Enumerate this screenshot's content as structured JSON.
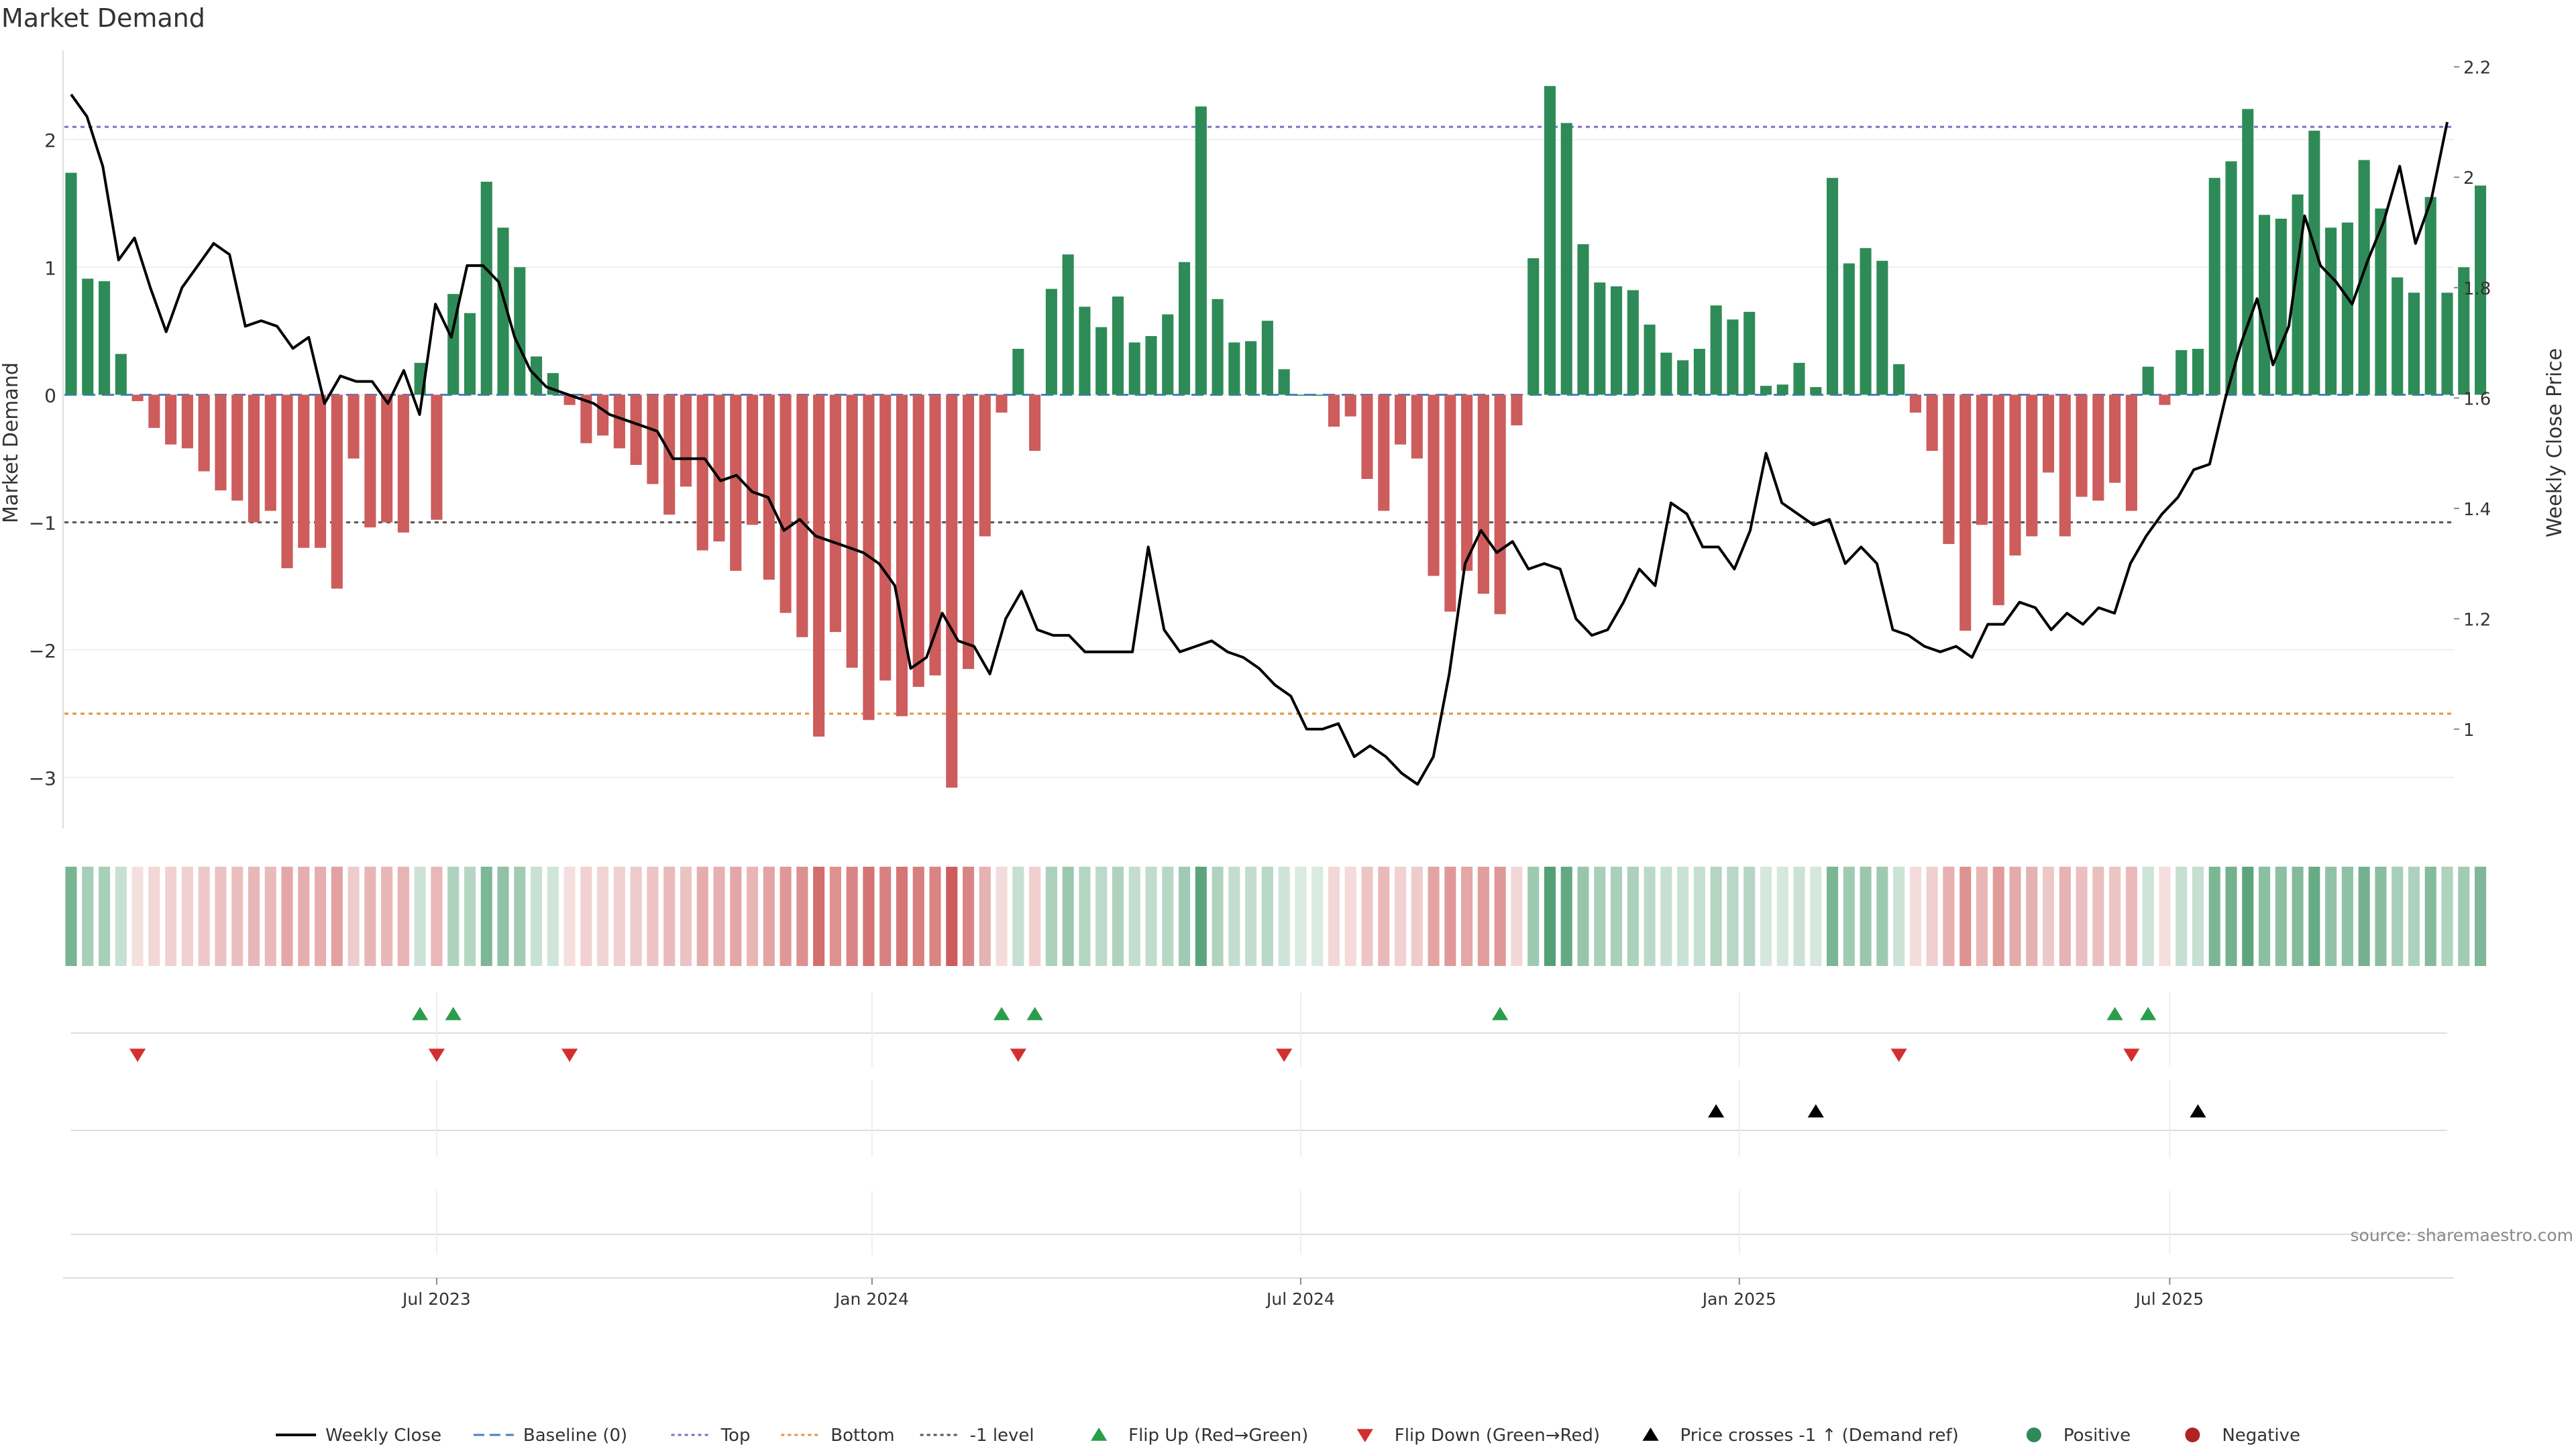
{
  "chart_data": {
    "type": "bar",
    "title": "Market Demand",
    "ylabel_left": "Market Demand",
    "ylabel_right": "Weekly Close Price",
    "ylim_left": [
      -3.4,
      2.7
    ],
    "ylim_right": [
      0.82,
      2.23
    ],
    "yticks_left": [
      -3,
      -2,
      -1,
      0,
      1,
      2
    ],
    "yticks_left_labels": [
      "−3",
      "−2",
      "−1",
      "0",
      "1",
      "2"
    ],
    "yticks_right": [
      1,
      1.2,
      1.4,
      1.6,
      1.8,
      2,
      2.2
    ],
    "yticks_right_labels": [
      "1",
      "1.2",
      "1.4",
      "1.6",
      "1.8",
      "2",
      "2.2"
    ],
    "x_start_index": 0,
    "x_end_index": 143,
    "x_ticks": [
      {
        "label": "Jul 2023",
        "index": 22
      },
      {
        "label": "Jan 2024",
        "index": 48.2
      },
      {
        "label": "Jul 2024",
        "index": 74
      },
      {
        "label": "Jan 2025",
        "index": 100.4
      },
      {
        "label": "Jul 2025",
        "index": 126.3
      }
    ],
    "reference_lines": [
      {
        "name": "Top",
        "value": 2.1,
        "color": "#7a6fc4"
      },
      {
        "name": "Bottom",
        "value": -2.5,
        "color": "#e69138"
      },
      {
        "name": "-1 level",
        "value": -1,
        "color": "#555555"
      },
      {
        "name": "Baseline (0)",
        "value": 0,
        "color": "#4a7fc1"
      }
    ],
    "series": [
      {
        "name": "Market Demand",
        "values": [
          1.74,
          0.91,
          0.89,
          0.32,
          -0.05,
          -0.26,
          -0.39,
          -0.42,
          -0.6,
          -0.75,
          -0.83,
          -1.0,
          -0.91,
          -1.36,
          -1.2,
          -1.2,
          -1.52,
          -0.5,
          -1.04,
          -1.0,
          -1.08,
          0.25,
          -0.98,
          0.79,
          0.64,
          1.67,
          1.31,
          1.0,
          0.3,
          0.17,
          -0.08,
          -0.38,
          -0.32,
          -0.42,
          -0.55,
          -0.7,
          -0.94,
          -0.72,
          -1.22,
          -1.15,
          -1.38,
          -1.02,
          -1.45,
          -1.71,
          -1.9,
          -2.68,
          -1.86,
          -2.14,
          -2.55,
          -2.24,
          -2.52,
          -2.29,
          -2.2,
          -3.08,
          -2.15,
          -1.11,
          -0.14,
          0.36,
          -0.44,
          0.83,
          1.1,
          0.69,
          0.53,
          0.77,
          0.41,
          0.46,
          0.63,
          1.04,
          2.26,
          0.75,
          0.41,
          0.42,
          0.58,
          0.2,
          0.0,
          0.0,
          -0.25,
          -0.17,
          -0.66,
          -0.91,
          -0.39,
          -0.5,
          -1.42,
          -1.7,
          -1.38,
          -1.56,
          -1.72,
          -0.24,
          1.07,
          2.42,
          2.13,
          1.18,
          0.88,
          0.85,
          0.82,
          0.55,
          0.33,
          0.27,
          0.36,
          0.7,
          0.59,
          0.65,
          0.07,
          0.08,
          0.25,
          0.06,
          1.7,
          1.03,
          1.15,
          1.05,
          0.24,
          -0.14,
          -0.44,
          -1.17,
          -1.85,
          -1.02,
          -1.65,
          -1.26,
          -1.11,
          -0.61,
          -1.11,
          -0.8,
          -0.83,
          -0.69,
          -0.91,
          0.22,
          -0.08,
          0.35,
          0.36,
          1.7,
          1.83,
          2.24,
          1.41,
          1.38,
          1.57,
          2.07,
          1.31,
          1.35,
          1.84,
          1.46,
          0.92,
          0.8,
          1.55,
          0.8,
          1.0,
          1.64
        ]
      },
      {
        "name": "Weekly Close",
        "color": "#000000",
        "values": [
          2.15,
          2.11,
          2.02,
          1.85,
          1.89,
          1.8,
          1.72,
          1.8,
          1.84,
          1.88,
          1.86,
          1.73,
          1.74,
          1.73,
          1.69,
          1.71,
          1.59,
          1.64,
          1.63,
          1.63,
          1.59,
          1.65,
          1.57,
          1.77,
          1.71,
          1.84,
          1.84,
          1.81,
          1.71,
          1.65,
          1.62,
          1.61,
          1.6,
          1.59,
          1.57,
          1.56,
          1.55,
          1.54,
          1.49,
          1.49,
          1.49,
          1.45,
          1.46,
          1.43,
          1.42,
          1.36,
          1.38,
          1.35,
          1.34,
          1.33,
          1.32,
          1.3,
          1.26,
          1.11,
          1.13,
          1.21,
          1.16,
          1.15,
          1.1,
          1.2,
          1.25,
          1.18,
          1.17,
          1.17,
          1.14,
          1.14,
          1.14,
          1.14,
          1.33,
          1.18,
          1.14,
          1.15,
          1.16,
          1.14,
          1.13,
          1.11,
          1.08,
          1.06,
          1.0,
          1.0,
          1.01,
          0.95,
          0.97,
          0.95,
          0.92,
          0.9,
          0.95,
          1.1,
          1.3,
          1.36,
          1.32,
          1.34,
          1.29,
          1.3,
          1.29,
          1.2,
          1.17,
          1.18,
          1.23,
          1.29,
          1.26,
          1.41,
          1.39,
          1.33,
          1.33,
          1.29,
          1.36,
          1.5,
          1.41,
          1.39,
          1.37,
          1.38,
          1.3,
          1.33,
          1.3,
          1.18,
          1.17,
          1.15,
          1.14,
          1.15,
          1.13,
          1.19,
          1.19,
          1.23,
          1.22,
          1.18,
          1.21,
          1.19,
          1.22,
          1.21,
          1.3,
          1.35,
          1.39,
          1.42,
          1.47,
          1.48,
          1.6,
          1.7,
          1.78,
          1.66,
          1.73,
          1.93,
          1.84,
          1.81,
          1.77,
          1.85,
          1.92,
          2.02,
          1.88,
          1.96,
          2.1
        ]
      }
    ],
    "flip_up_indices": [
      21,
      23,
      56,
      58,
      86,
      123,
      125
    ],
    "flip_down_indices": [
      4,
      22,
      30,
      57,
      73,
      110,
      124
    ],
    "price_cross_indices": [
      99,
      105,
      128
    ],
    "source_text": "source: sharemaestro.com",
    "legend": [
      {
        "label": "Weekly Close",
        "kind": "line",
        "color": "#000000"
      },
      {
        "label": "Baseline (0)",
        "kind": "dashed",
        "color": "#4a7fc1"
      },
      {
        "label": "Top",
        "kind": "dotted",
        "color": "#7a6fc4"
      },
      {
        "label": "Bottom",
        "kind": "dotted",
        "color": "#e69138"
      },
      {
        "label": "-1 level",
        "kind": "dotted",
        "color": "#555555"
      },
      {
        "label": "Flip Up (Red→Green)",
        "kind": "tri-up",
        "color": "#2a9d4a"
      },
      {
        "label": "Flip Down (Green→Red)",
        "kind": "tri-down",
        "color": "#d32f2f"
      },
      {
        "label": "Price crosses -1 ↑ (Demand ref)",
        "kind": "tri-up",
        "color": "#000000"
      },
      {
        "label": "Positive",
        "kind": "dot",
        "color": "#2e8b57"
      },
      {
        "label": "Negative",
        "kind": "dot",
        "color": "#b22222"
      }
    ],
    "colors": {
      "positive": "#2e8b57",
      "negative": "#cd5c5c",
      "positive_dot": "#2e8b57",
      "negative_dot": "#b22222"
    }
  }
}
